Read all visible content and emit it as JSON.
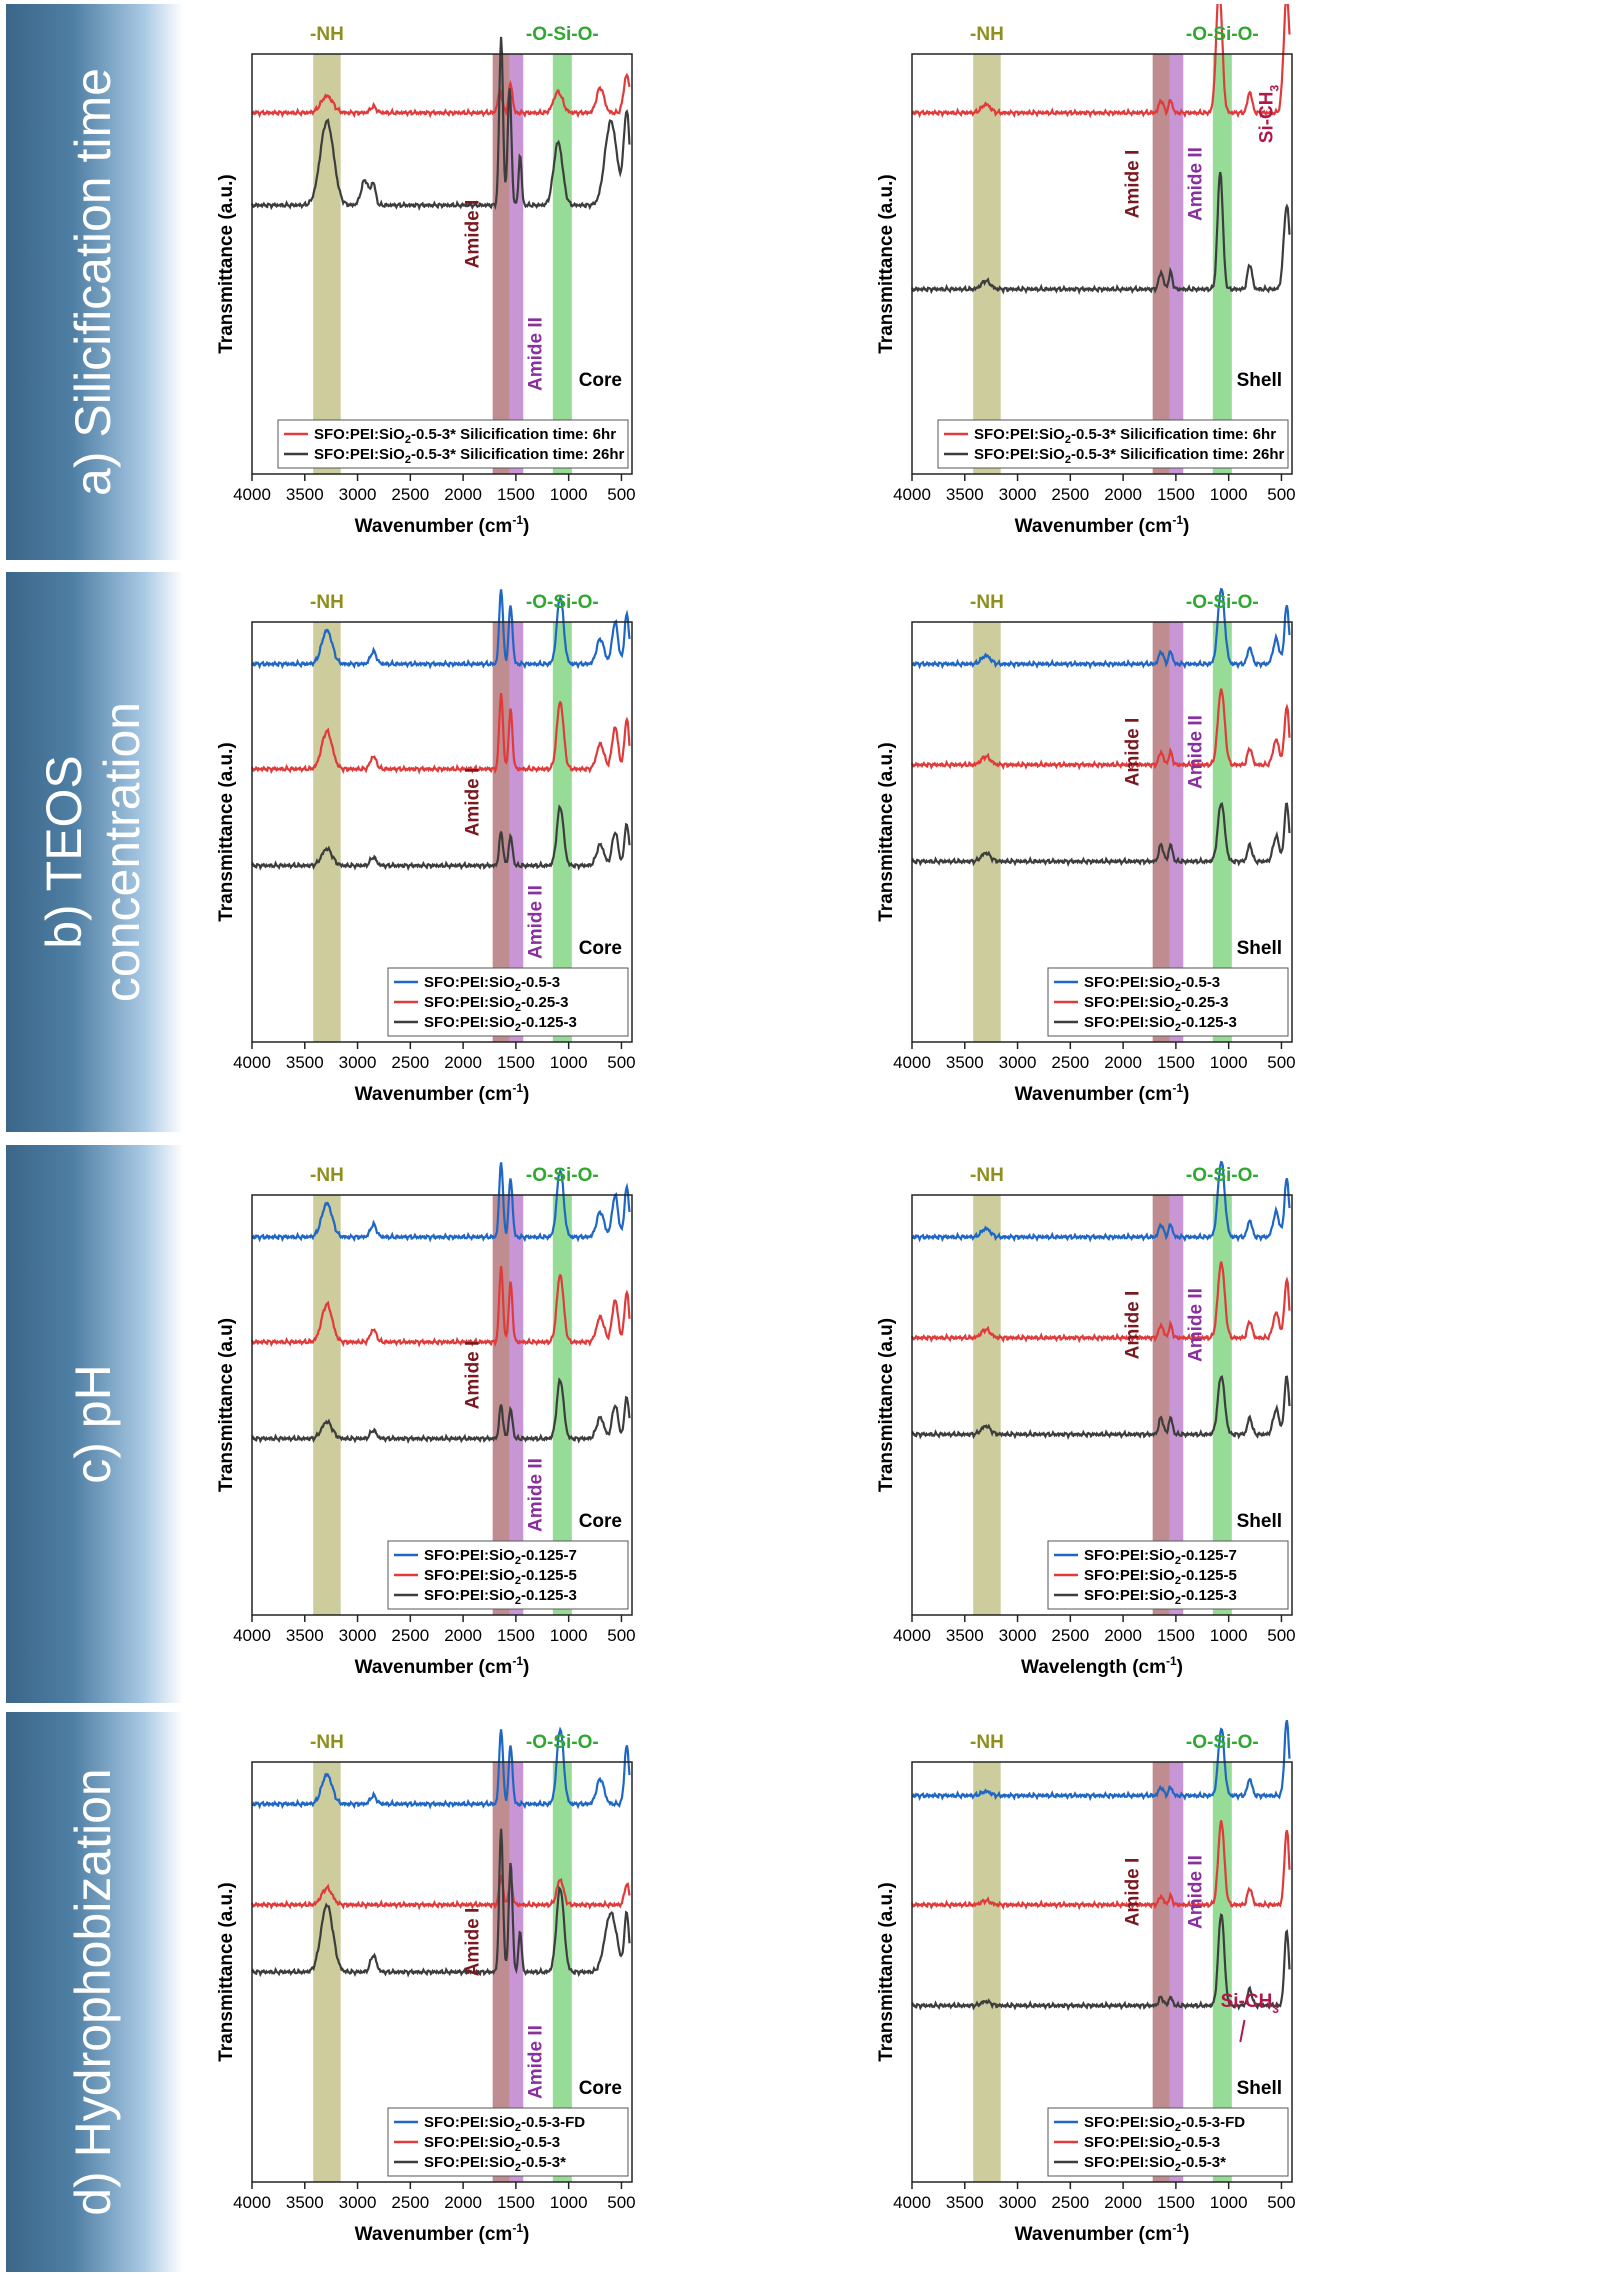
{
  "colors": {
    "blue": "#1f67c4",
    "red": "#e03a3a",
    "black": "#3d3d3d",
    "nh_band": "#a3a34a",
    "amide1_band": "#8b2f35",
    "amide2_band": "#9b3fb3",
    "osio_band": "#3fbf3f",
    "label_nh": "#8f8f1f",
    "label_amide1": "#7a1a20",
    "label_amide2": "#8a2f9f",
    "label_osio": "#2fa82f",
    "label_sich3": "#b0184a"
  },
  "rows": [
    {
      "label_lines": [
        "a) Silicification time"
      ]
    },
    {
      "label_lines": [
        "b) TEOS",
        "concentration"
      ]
    },
    {
      "label_lines": [
        "c) pH"
      ]
    },
    {
      "label_lines": [
        "d) Hydrophobization"
      ]
    }
  ],
  "band_labels": {
    "nh": "-NH",
    "osio": "-O-Si-O-",
    "amide1": "Amide I",
    "amide2": "Amide II",
    "sich3": "Si-CH"
  },
  "chart_data": [
    {
      "type": "line",
      "id": "a-core",
      "title": "",
      "sublabel": "Core",
      "xlabel": "Wavenumber (cm",
      "xlabel_sup": "-1",
      "xlabel_end": ")",
      "ylabel": "Transmittance (a.u.)",
      "xlim": [
        4000,
        400
      ],
      "xticks": [
        4000,
        3500,
        3000,
        2500,
        2000,
        1500,
        1000,
        500
      ],
      "series": [
        {
          "name": "SFO:PEI:SiO2-0.5-3* Silicification time: 6hr",
          "color": "red"
        },
        {
          "name": "SFO:PEI:SiO2-0.5-3* Silicification time: 26hr",
          "color": "black"
        }
      ]
    },
    {
      "type": "line",
      "id": "a-shell",
      "title": "",
      "sublabel": "Shell",
      "xlabel": "Wavenumber (cm",
      "xlabel_sup": "-1",
      "xlabel_end": ")",
      "ylabel": "Transmittance (a.u.)",
      "xlim": [
        4000,
        400
      ],
      "xticks": [
        4000,
        3500,
        3000,
        2500,
        2000,
        1500,
        1000,
        500
      ],
      "series": [
        {
          "name": "SFO:PEI:SiO2-0.5-3* Silicification time: 6hr",
          "color": "red"
        },
        {
          "name": "SFO:PEI:SiO2-0.5-3* Silicification time: 26hr",
          "color": "black"
        }
      ]
    },
    {
      "type": "line",
      "id": "b-core",
      "title": "",
      "sublabel": "Core",
      "xlabel": "Wavenumber (cm",
      "xlabel_sup": "-1",
      "xlabel_end": ")",
      "ylabel": "Transmittance (a.u.)",
      "xlim": [
        4000,
        400
      ],
      "xticks": [
        4000,
        3500,
        3000,
        2500,
        2000,
        1500,
        1000,
        500
      ],
      "series": [
        {
          "name": "SFO:PEI:SiO2-0.5-3",
          "color": "blue"
        },
        {
          "name": "SFO:PEI:SiO2-0.25-3",
          "color": "red"
        },
        {
          "name": "SFO:PEI:SiO2-0.125-3",
          "color": "black"
        }
      ]
    },
    {
      "type": "line",
      "id": "b-shell",
      "title": "",
      "sublabel": "Shell",
      "xlabel": "Wavenumber (cm",
      "xlabel_sup": "-1",
      "xlabel_end": ")",
      "ylabel": "Transmittance (a.u.)",
      "xlim": [
        4000,
        400
      ],
      "xticks": [
        4000,
        3500,
        3000,
        2500,
        2000,
        1500,
        1000,
        500
      ],
      "series": [
        {
          "name": "SFO:PEI:SiO2-0.5-3",
          "color": "blue"
        },
        {
          "name": "SFO:PEI:SiO2-0.25-3",
          "color": "red"
        },
        {
          "name": "SFO:PEI:SiO2-0.125-3",
          "color": "black"
        }
      ]
    },
    {
      "type": "line",
      "id": "c-core",
      "title": "",
      "sublabel": "Core",
      "xlabel": "Wavenumber (cm",
      "xlabel_sup": "-1",
      "xlabel_end": ")",
      "ylabel": "Transmittance (a.u)",
      "xlim": [
        4000,
        400
      ],
      "xticks": [
        4000,
        3500,
        3000,
        2500,
        2000,
        1500,
        1000,
        500
      ],
      "series": [
        {
          "name": "SFO:PEI:SiO2-0.125-7",
          "color": "blue"
        },
        {
          "name": "SFO:PEI:SiO2-0.125-5",
          "color": "red"
        },
        {
          "name": "SFO:PEI:SiO2-0.125-3",
          "color": "black"
        }
      ]
    },
    {
      "type": "line",
      "id": "c-shell",
      "title": "",
      "sublabel": "Shell",
      "xlabel": "Wavelength (cm",
      "xlabel_sup": "-1",
      "xlabel_end": ")",
      "ylabel": "Transmittance (a.u)",
      "xlim": [
        4000,
        400
      ],
      "xticks": [
        4000,
        3500,
        3000,
        2500,
        2000,
        1500,
        1000,
        500
      ],
      "series": [
        {
          "name": "SFO:PEI:SiO2-0.125-7",
          "color": "blue"
        },
        {
          "name": "SFO:PEI:SiO2-0.125-5",
          "color": "red"
        },
        {
          "name": "SFO:PEI:SiO2-0.125-3",
          "color": "black"
        }
      ]
    },
    {
      "type": "line",
      "id": "d-core",
      "title": "",
      "sublabel": "Core",
      "xlabel": "Wavenumber (cm",
      "xlabel_sup": "-1",
      "xlabel_end": ")",
      "ylabel": "Transmittance (a.u.)",
      "xlim": [
        4000,
        400
      ],
      "xticks": [
        4000,
        3500,
        3000,
        2500,
        2000,
        1500,
        1000,
        500
      ],
      "series": [
        {
          "name": "SFO:PEI:SiO2-0.5-3-FD",
          "color": "blue"
        },
        {
          "name": "SFO:PEI:SiO2-0.5-3",
          "color": "red"
        },
        {
          "name": "SFO:PEI:SiO2-0.5-3*",
          "color": "black"
        }
      ]
    },
    {
      "type": "line",
      "id": "d-shell",
      "title": "",
      "sublabel": "Shell",
      "xlabel": "Wavenumber (cm",
      "xlabel_sup": "-1",
      "xlabel_end": ")",
      "ylabel": "Transmittance (a.u.)",
      "xlim": [
        4000,
        400
      ],
      "xticks": [
        4000,
        3500,
        3000,
        2500,
        2000,
        1500,
        1000,
        500
      ],
      "series": [
        {
          "name": "SFO:PEI:SiO2-0.5-3-FD",
          "color": "blue"
        },
        {
          "name": "SFO:PEI:SiO2-0.5-3",
          "color": "red"
        },
        {
          "name": "SFO:PEI:SiO2-0.5-3*",
          "color": "black"
        }
      ]
    }
  ]
}
